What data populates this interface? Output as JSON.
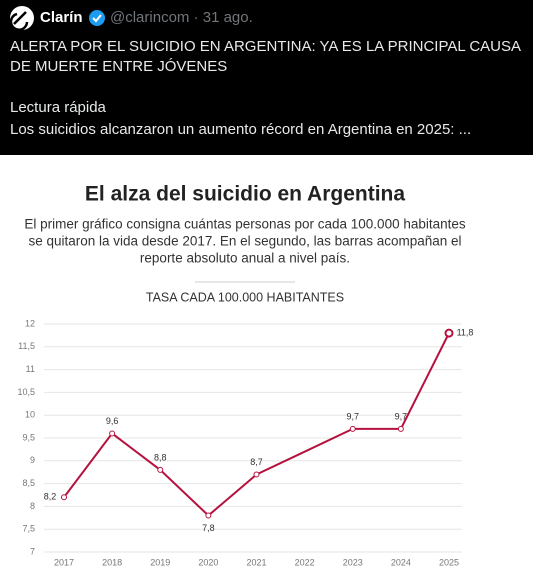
{
  "tweet": {
    "author": "Clarín",
    "handle_time": "@clarincom · 31 ago.",
    "lines": [
      "ALERTA POR EL SUICIDIO EN ARGENTINA: YA ES LA PRINCIPAL CAUSA",
      "DE MUERTE ENTRE JÓVENES",
      "Lectura rápida",
      "Los suicidios alcanzaron un aumento récord en Argentina en 2025: ..."
    ]
  },
  "chart_data": {
    "type": "line",
    "title": "El alza del suicidio en Argentina",
    "subtitle": [
      "El primer gráfico consigna cuántas personas por cada 100.000 habitantes",
      "se quitaron la vida desde 2017. En el segundo, las barras acompañan el",
      "reporte absoluto anual a nivel país."
    ],
    "ylabel": "TASA CADA 100.000 HABITANTES",
    "categories": [
      "2017",
      "2018",
      "2019",
      "2020",
      "2021",
      "2022",
      "2023",
      "2024",
      "2025"
    ],
    "values": [
      8.2,
      9.6,
      8.8,
      7.8,
      8.7,
      9.2,
      9.7,
      9.7,
      11.8
    ],
    "value_labels": [
      "8,2",
      "9,6",
      "8,8",
      "7,8",
      "8,7",
      null,
      "9,7",
      "9,7",
      "11,8"
    ],
    "color": "#b5123f",
    "ylim": [
      7,
      12
    ],
    "yticks": [
      7,
      {
        "value": 7.5,
        "label": "7,5"
      },
      8,
      {
        "value": 8.5,
        "label": "8,5"
      },
      9,
      {
        "value": 9.5,
        "label": "9,5"
      },
      10,
      {
        "value": 10.5,
        "label": "10,5"
      },
      11,
      {
        "value": 11.5,
        "label": "11,5"
      },
      12
    ],
    "grid": true
  }
}
